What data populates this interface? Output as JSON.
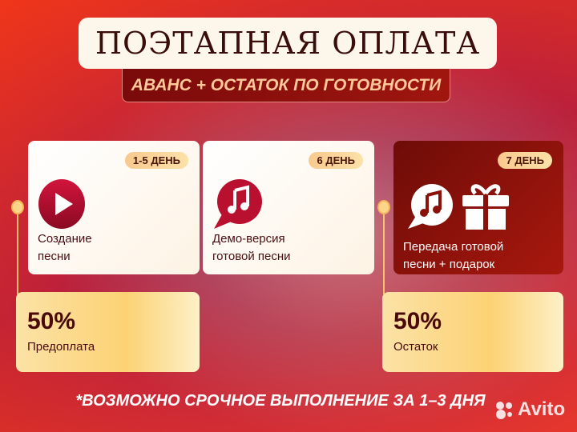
{
  "header": {
    "title": "ПОЭТАПНАЯ ОПЛАТА",
    "subtitle": "АВАНС + ОСТАТОК ПО ГОТОВНОСТИ"
  },
  "stages": [
    {
      "badge": "1-5 ДЕНЬ",
      "line1": "Создание",
      "line2": "песни",
      "icon": "play-icon"
    },
    {
      "badge": "6 ДЕНЬ",
      "line1": "Демо-версия",
      "line2": "готовой песни",
      "icon": "music-chat-icon"
    },
    {
      "badge": "7 ДЕНЬ",
      "line1": "Передача готовой",
      "line2": "песни + подарок",
      "icon": "music-chat-gift-icon"
    }
  ],
  "payments": [
    {
      "percent": "50%",
      "label": "Предоплата"
    },
    {
      "percent": "50%",
      "label": "Остаток"
    }
  ],
  "footer": "*ВОЗМОЖНО СРОЧНОЕ ВЫПОЛНЕНИЕ ЗА 1–3 ДНЯ",
  "watermark": "Avito",
  "colors": {
    "accent": "#a8180e",
    "gold": "#fcd274",
    "text": "#4a0a0a"
  }
}
